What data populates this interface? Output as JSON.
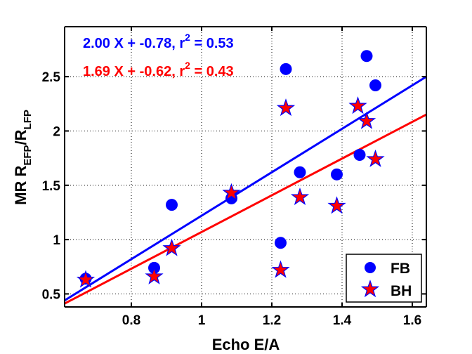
{
  "chart_data": {
    "type": "scatter",
    "xlabel": "Echo E/A",
    "ylabel": {
      "prefix": "MR R",
      "sub1": "EFP",
      "mid": "/R",
      "sub2": "LFP"
    },
    "xlim": [
      0.61,
      1.64
    ],
    "ylim": [
      0.38,
      2.96
    ],
    "xticks": [
      0.8,
      1.0,
      1.2,
      1.4,
      1.6
    ],
    "xtick_labels": [
      "0.8",
      "1",
      "1.2",
      "1.4",
      "1.6"
    ],
    "yticks": [
      0.5,
      1.0,
      1.5,
      2.0,
      2.5
    ],
    "ytick_labels": [
      "0.5",
      "1",
      "1.5",
      "2",
      "2.5"
    ],
    "grid": true,
    "legend_position": "bottom-right",
    "series": [
      {
        "name": "FB",
        "marker": "circle",
        "color": "#0000ff",
        "points": [
          [
            0.67,
            0.64
          ],
          [
            0.865,
            0.74
          ],
          [
            0.915,
            1.32
          ],
          [
            1.085,
            1.38
          ],
          [
            1.225,
            0.97
          ],
          [
            1.24,
            2.57
          ],
          [
            1.28,
            1.62
          ],
          [
            1.385,
            1.6
          ],
          [
            1.45,
            1.78
          ],
          [
            1.47,
            2.69
          ],
          [
            1.495,
            2.42
          ]
        ],
        "fit": {
          "slope": 2.0,
          "intercept": -0.78,
          "label_main": "2.00 X + -0.78, r",
          "label_sup": "2",
          "label_tail": " = 0.53"
        }
      },
      {
        "name": "BH",
        "marker": "star",
        "color": "#ff0000",
        "edge": "#0000ff",
        "points": [
          [
            0.67,
            0.63
          ],
          [
            0.865,
            0.66
          ],
          [
            0.915,
            0.92
          ],
          [
            1.085,
            1.43
          ],
          [
            1.225,
            0.72
          ],
          [
            1.24,
            2.21
          ],
          [
            1.28,
            1.39
          ],
          [
            1.385,
            1.31
          ],
          [
            1.445,
            2.23
          ],
          [
            1.47,
            2.09
          ],
          [
            1.495,
            1.74
          ]
        ],
        "fit": {
          "slope": 1.69,
          "intercept": -0.62,
          "label_main": "1.69 X + -0.62, r",
          "label_sup": "2",
          "label_tail": " = 0.43"
        }
      }
    ]
  }
}
